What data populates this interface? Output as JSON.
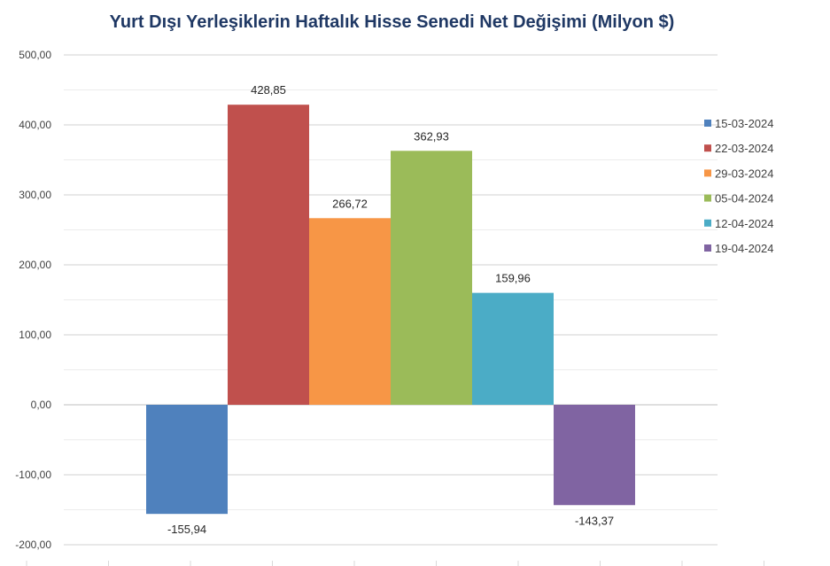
{
  "chart_data": {
    "type": "bar",
    "title": "Yurt Dışı Yerleşiklerin Haftalık Hisse Senedi Net Değişimi (Milyon $)",
    "xlabel": "",
    "ylabel": "",
    "ylim": [
      -200,
      500
    ],
    "yticks": [
      500,
      400,
      300,
      200,
      100,
      0,
      -100,
      -200
    ],
    "ytick_labels": [
      "500,00",
      "400,00",
      "300,00",
      "200,00",
      "100,00",
      "0,00",
      "-100,00",
      "-200,00"
    ],
    "grid": true,
    "legend_position": "right",
    "series": [
      {
        "name": "15-03-2024",
        "value": -155.94,
        "label": "-155,94",
        "color": "#4f81bd"
      },
      {
        "name": "22-03-2024",
        "value": 428.85,
        "label": "428,85",
        "color": "#c0504d"
      },
      {
        "name": "29-03-2024",
        "value": 266.72,
        "label": "266,72",
        "color": "#f79646"
      },
      {
        "name": "05-04-2024",
        "value": 362.93,
        "label": "362,93",
        "color": "#9bbb59"
      },
      {
        "name": "12-04-2024",
        "value": 159.96,
        "label": "159,96",
        "color": "#4bacc6"
      },
      {
        "name": "19-04-2024",
        "value": -143.37,
        "label": "-143,37",
        "color": "#8064a2"
      }
    ]
  }
}
